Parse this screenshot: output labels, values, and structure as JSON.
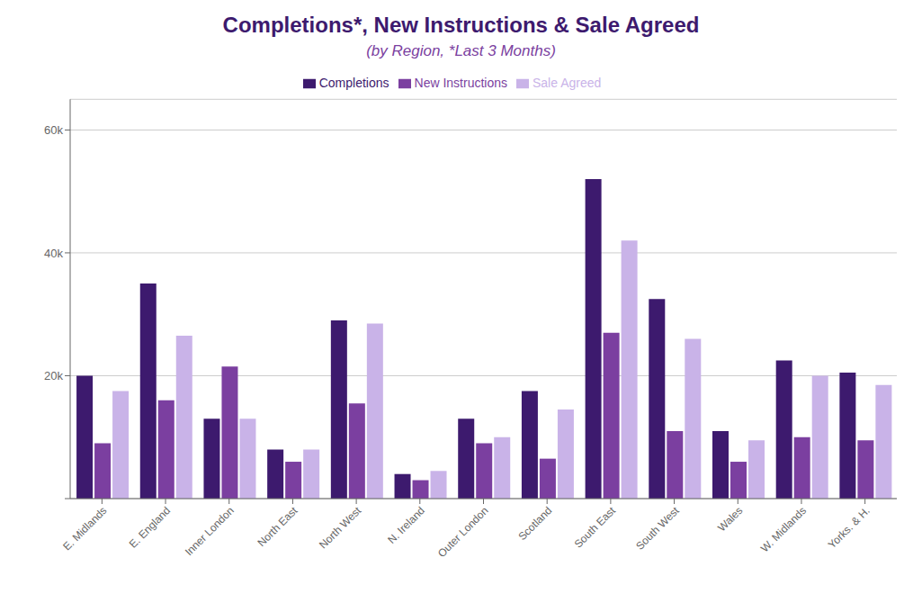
{
  "chart_data": {
    "type": "bar",
    "title": "Completions*, New Instructions & Sale Agreed",
    "subtitle": "(by Region, *Last 3 Months)",
    "categories": [
      "E. Midlands",
      "E. England",
      "Inner London",
      "North East",
      "North West",
      "N. Ireland",
      "Outer London",
      "Scotland",
      "South East",
      "South West",
      "Wales",
      "W. Midlands",
      "Yorks. & H."
    ],
    "series": [
      {
        "name": "Completions",
        "color": "#3d1a6e",
        "values": [
          20000,
          35000,
          13000,
          8000,
          29000,
          4000,
          13000,
          17500,
          52000,
          32500,
          11000,
          22500,
          20500
        ]
      },
      {
        "name": "New Instructions",
        "color": "#7b3fa0",
        "values": [
          9000,
          16000,
          21500,
          6000,
          15500,
          3000,
          9000,
          6500,
          27000,
          11000,
          6000,
          10000,
          9500
        ]
      },
      {
        "name": "Sale Agreed",
        "color": "#c9b3e8",
        "values": [
          17500,
          26500,
          13000,
          8000,
          28500,
          4500,
          10000,
          14500,
          42000,
          26000,
          9500,
          20000,
          18500
        ]
      }
    ],
    "ylim": [
      0,
      65000
    ],
    "yticks": [
      {
        "value": 0,
        "label": ""
      },
      {
        "value": 20000,
        "label": "20k"
      },
      {
        "value": 40000,
        "label": "40k"
      },
      {
        "value": 60000,
        "label": "60k"
      }
    ],
    "grid": true,
    "legend": "top"
  }
}
